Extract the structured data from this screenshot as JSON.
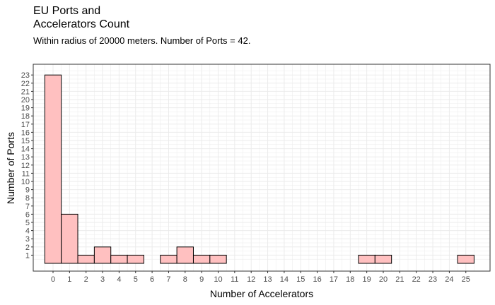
{
  "chart_data": {
    "type": "bar",
    "title": "EU Ports and\nAccelerators Count",
    "subtitle": "Within radius of 20000 meters. Number of Ports = 42.",
    "xlabel": "Number of Accelerators",
    "ylabel": "Number of Ports",
    "categories": [
      0,
      1,
      2,
      3,
      4,
      5,
      6,
      7,
      8,
      9,
      10,
      11,
      12,
      13,
      14,
      15,
      16,
      17,
      18,
      19,
      20,
      21,
      22,
      23,
      24,
      25
    ],
    "values": [
      23,
      6,
      1,
      2,
      1,
      1,
      0,
      1,
      2,
      1,
      1,
      0,
      0,
      0,
      0,
      0,
      0,
      0,
      0,
      1,
      1,
      0,
      0,
      0,
      0,
      1
    ],
    "x_ticks": [
      "0",
      "1",
      "2",
      "3",
      "4",
      "5",
      "6",
      "7",
      "8",
      "9",
      "10",
      "11",
      "12",
      "13",
      "14",
      "15",
      "16",
      "17",
      "18",
      "19",
      "20",
      "21",
      "22",
      "23",
      "24",
      "25"
    ],
    "y_ticks": [
      "1",
      "2",
      "3",
      "4",
      "5",
      "6",
      "7",
      "8",
      "9",
      "10",
      "11",
      "12",
      "13",
      "14",
      "15",
      "16",
      "17",
      "18",
      "19",
      "20",
      "21",
      "22",
      "23"
    ],
    "ylim": [
      0,
      23
    ],
    "grid": true,
    "bar_fill": "#ffc0c0",
    "bar_stroke": "#000000",
    "grid_color": "#ebebeb"
  }
}
